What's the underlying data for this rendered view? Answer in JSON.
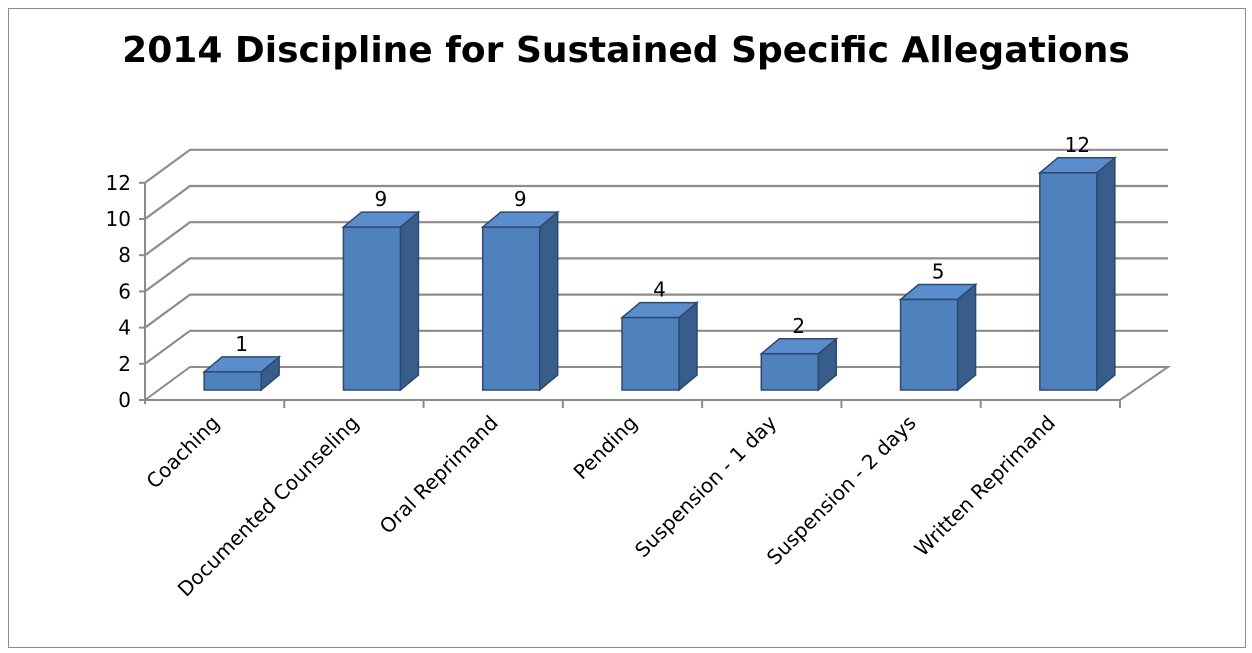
{
  "chart_data": {
    "type": "bar",
    "title": "2014 Discipline for Sustained Specific Allegations",
    "xlabel": "",
    "ylabel": "",
    "categories": [
      "Coaching",
      "Documented Counseling",
      "Oral Reprimand",
      "Pending",
      "Suspension - 1 day",
      "Suspension - 2 days",
      "Written Reprimand"
    ],
    "series": [
      {
        "values": [
          1,
          9,
          9,
          4,
          2,
          5,
          12
        ]
      }
    ],
    "ylim": [
      0,
      12
    ],
    "yticks": [
      0,
      2,
      4,
      6,
      8,
      10,
      12
    ],
    "data_labels": true,
    "grid": true,
    "legend": "none",
    "style": "3d-column",
    "colors": {
      "bar_front": "#4f81bd",
      "bar_top": "#5b8ccc",
      "bar_side": "#385d8a",
      "grid": "#8c8c8c",
      "axis": "#8c8c8c"
    }
  }
}
